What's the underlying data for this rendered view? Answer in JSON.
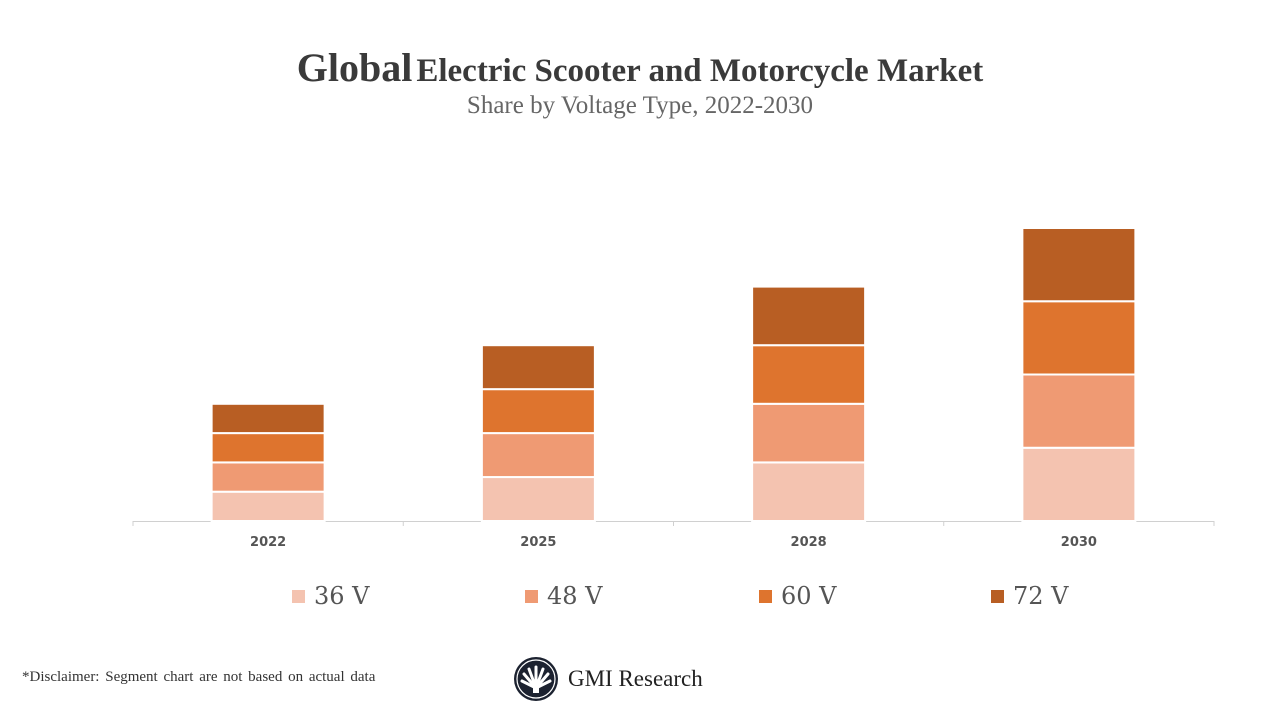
{
  "title_prefix": "Global",
  "title_rest": "Electric Scooter and Motorcycle Market",
  "subtitle": "Share by Voltage Type, 2022-2030",
  "chart_data": {
    "type": "bar",
    "stacked": true,
    "categories": [
      "2022",
      "2025",
      "2028",
      "2030"
    ],
    "series": [
      {
        "name": "36 V",
        "color": "#F4C3B0",
        "values": [
          2,
          3,
          4,
          5
        ]
      },
      {
        "name": "48 V",
        "color": "#EF9A73",
        "values": [
          2,
          3,
          4,
          5
        ]
      },
      {
        "name": "60 V",
        "color": "#DE742E",
        "values": [
          2,
          3,
          4,
          5
        ]
      },
      {
        "name": "72 V",
        "color": "#B85E23",
        "values": [
          2,
          3,
          4,
          5
        ]
      }
    ],
    "ylim": [
      0,
      20
    ],
    "grid": false,
    "legend": "bottom"
  },
  "disclaimer": "*Disclaimer:  Segment chart are not based on actual data",
  "logo_text": "GMI Research"
}
